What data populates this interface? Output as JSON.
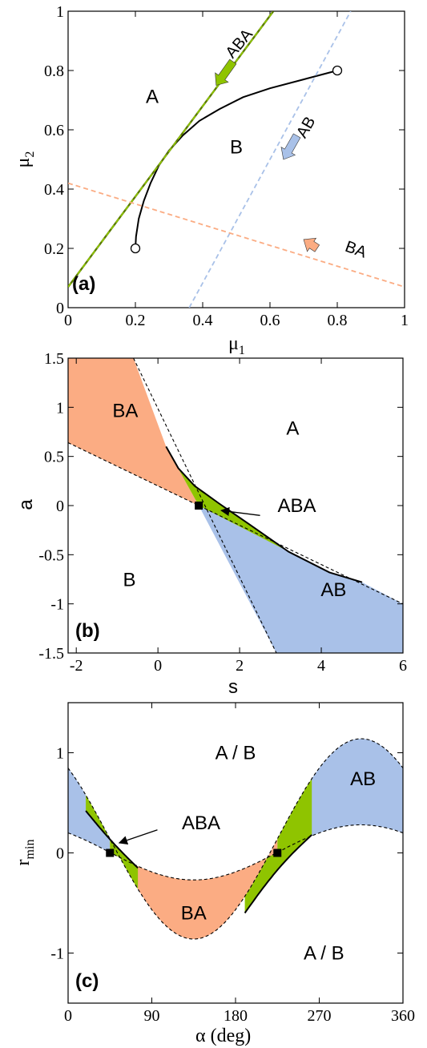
{
  "colors": {
    "ABA": "#8fc400",
    "AB": "#a9c1e8",
    "BA": "#fbac83",
    "curve": "#000000"
  },
  "chart_data": [
    {
      "type": "line",
      "panel_label": "(a)",
      "xlabel_main": "μ",
      "xlabel_sub": "1",
      "ylabel_main": "μ",
      "ylabel_sub": "2",
      "xlim": [
        0,
        1
      ],
      "ylim": [
        0,
        1
      ],
      "xticks": [
        0,
        0.2,
        0.4,
        0.6,
        0.8,
        1
      ],
      "xtick_labels": [
        "0",
        "0.2",
        "0.4",
        "0.6",
        "0.8",
        "1"
      ],
      "yticks": [
        0,
        0.2,
        0.4,
        0.6,
        0.8,
        1
      ],
      "ytick_labels": [
        "0",
        "0.2",
        "0.4",
        "0.6",
        "0.8",
        "1"
      ],
      "series": [
        {
          "style": "solid",
          "points": [
            [
              0.2,
              0.2
            ],
            [
              0.202,
              0.24
            ],
            [
              0.21,
              0.3
            ],
            [
              0.225,
              0.36
            ],
            [
              0.245,
              0.42
            ],
            [
              0.27,
              0.48
            ],
            [
              0.3,
              0.53
            ],
            [
              0.34,
              0.58
            ],
            [
              0.39,
              0.63
            ],
            [
              0.45,
              0.67
            ],
            [
              0.52,
              0.71
            ],
            [
              0.6,
              0.74
            ],
            [
              0.7,
              0.77
            ],
            [
              0.8,
              0.8
            ]
          ],
          "endpoints": [
            [
              0.2,
              0.2
            ],
            [
              0.8,
              0.8
            ]
          ]
        },
        {
          "name": "ABA",
          "style": "dashed",
          "color_key": "ABA",
          "points": [
            [
              0,
              0.07
            ],
            [
              0.61,
              1
            ]
          ]
        },
        {
          "name": "AB",
          "style": "dashed",
          "color_key": "AB",
          "points": [
            [
              0.36,
              0
            ],
            [
              0.84,
              1
            ]
          ]
        },
        {
          "name": "BA",
          "style": "dashed",
          "color_key": "BA",
          "points": [
            [
              0,
              0.42
            ],
            [
              1,
              0.07
            ]
          ]
        }
      ],
      "region_labels": [
        {
          "text": "A",
          "x": 0.25,
          "y": 0.69
        },
        {
          "text": "B",
          "x": 0.5,
          "y": 0.52
        }
      ],
      "arrows": [
        {
          "text": "ABA",
          "color_key": "ABA",
          "from": [
            0.49,
            0.83
          ],
          "to": [
            0.44,
            0.75
          ],
          "label_at": [
            0.52,
            0.88
          ],
          "rotate": -50
        },
        {
          "text": "AB",
          "color_key": "AB",
          "from": [
            0.68,
            0.58
          ],
          "to": [
            0.64,
            0.5
          ],
          "label_at": [
            0.72,
            0.6
          ],
          "rotate": -60
        },
        {
          "text": "BA",
          "color_key": "BA",
          "from": [
            0.74,
            0.2
          ],
          "to": [
            0.7,
            0.23
          ],
          "label_at": [
            0.85,
            0.18
          ],
          "rotate": 20
        }
      ]
    },
    {
      "type": "area",
      "panel_label": "(b)",
      "xlabel": "s",
      "ylabel": "a",
      "xlim": [
        -2.2,
        6
      ],
      "ylim": [
        -1.5,
        1.5
      ],
      "xticks": [
        -2,
        0,
        2,
        4,
        6
      ],
      "xtick_labels": [
        "-2",
        "0",
        "2",
        "4",
        "6"
      ],
      "yticks": [
        -1.5,
        -1,
        -0.5,
        0,
        0.5,
        1,
        1.5
      ],
      "ytick_labels": [
        "-1.5",
        "-1",
        "-0.5",
        "0",
        "0.5",
        "1",
        "1.5"
      ],
      "critical_point": [
        1,
        0
      ],
      "areas": [
        {
          "name": "BA",
          "color_key": "BA",
          "points": [
            [
              -2.2,
              1.5
            ],
            [
              -0.6,
              1.5
            ],
            [
              0.2,
              0.6
            ],
            [
              1,
              0
            ],
            [
              -2.2,
              0.64
            ]
          ]
        },
        {
          "name": "ABA",
          "color_key": "ABA",
          "points": [
            [
              0.2,
              0.6
            ],
            [
              0.5,
              0.38
            ],
            [
              0.9,
              0.2
            ],
            [
              1.5,
              0.02
            ],
            [
              2.2,
              -0.18
            ],
            [
              3.2,
              -0.47
            ],
            [
              4.2,
              -0.68
            ],
            [
              3,
              -0.57
            ],
            [
              1.5,
              -0.2
            ],
            [
              1,
              0
            ]
          ]
        },
        {
          "name": "AB",
          "color_key": "AB",
          "points": [
            [
              1,
              0
            ],
            [
              4.2,
              -0.68
            ],
            [
              5,
              -0.78
            ],
            [
              6,
              -1
            ],
            [
              6,
              -1.5
            ],
            [
              2.9,
              -1.5
            ]
          ]
        }
      ],
      "dashed_lines": [
        [
          [
            -2.2,
            0.64
          ],
          [
            6,
            -1
          ]
        ],
        [
          [
            -0.6,
            1.5
          ],
          [
            2.9,
            -1.5
          ]
        ],
        [
          [
            0.2,
            0.6
          ],
          [
            0.5,
            0.38
          ],
          [
            0.9,
            0.2
          ],
          [
            1.5,
            0.02
          ],
          [
            2.2,
            -0.18
          ],
          [
            3.2,
            -0.47
          ],
          [
            4.2,
            -0.68
          ],
          [
            5,
            -0.78
          ]
        ]
      ],
      "solid_lines": [
        [
          [
            0.2,
            0.6
          ],
          [
            0.5,
            0.38
          ],
          [
            0.9,
            0.2
          ],
          [
            1.5,
            0.02
          ],
          [
            2.2,
            -0.18
          ],
          [
            3.2,
            -0.47
          ],
          [
            4.2,
            -0.68
          ],
          [
            5,
            -0.78
          ]
        ]
      ],
      "region_labels": [
        {
          "text": "BA",
          "x": -0.8,
          "y": 0.9
        },
        {
          "text": "A",
          "x": 3.3,
          "y": 0.72
        },
        {
          "text": "B",
          "x": -0.7,
          "y": -0.82
        },
        {
          "text": "AB",
          "x": 4.3,
          "y": -0.92
        }
      ],
      "arrows": [
        {
          "text": "ABA",
          "from": [
            2.5,
            -0.1
          ],
          "to": [
            1.55,
            -0.05
          ],
          "label_at": [
            3.4,
            0.0
          ]
        }
      ]
    },
    {
      "type": "area",
      "panel_label": "(c)",
      "xlabel_main": "α",
      "xlabel_rest": " (deg)",
      "ylabel_main": "r",
      "ylabel_sub": "min",
      "xlim": [
        0,
        360
      ],
      "ylim": [
        -1.5,
        1.5
      ],
      "xticks": [
        0,
        90,
        180,
        270,
        360
      ],
      "xtick_labels": [
        "0",
        "90",
        "180",
        "270",
        "360"
      ],
      "yticks": [
        -1,
        0,
        1
      ],
      "ytick_labels": [
        "-1",
        "0",
        "1"
      ],
      "critical_points": [
        [
          45,
          0
        ],
        [
          225,
          0
        ]
      ],
      "region_labels": [
        {
          "text": "A / B",
          "x": 180,
          "y": 1.0
        },
        {
          "text": "A / B",
          "x": 275,
          "y": -1.0
        },
        {
          "text": "AB",
          "x": 317,
          "y": 0.74
        },
        {
          "text": "BA",
          "x": 135,
          "y": -0.6
        }
      ],
      "arrows": [
        {
          "text": "ABA",
          "from": [
            96,
            0.23
          ],
          "to": [
            55,
            0.1
          ],
          "label_at": [
            143,
            0.3
          ]
        }
      ]
    }
  ]
}
